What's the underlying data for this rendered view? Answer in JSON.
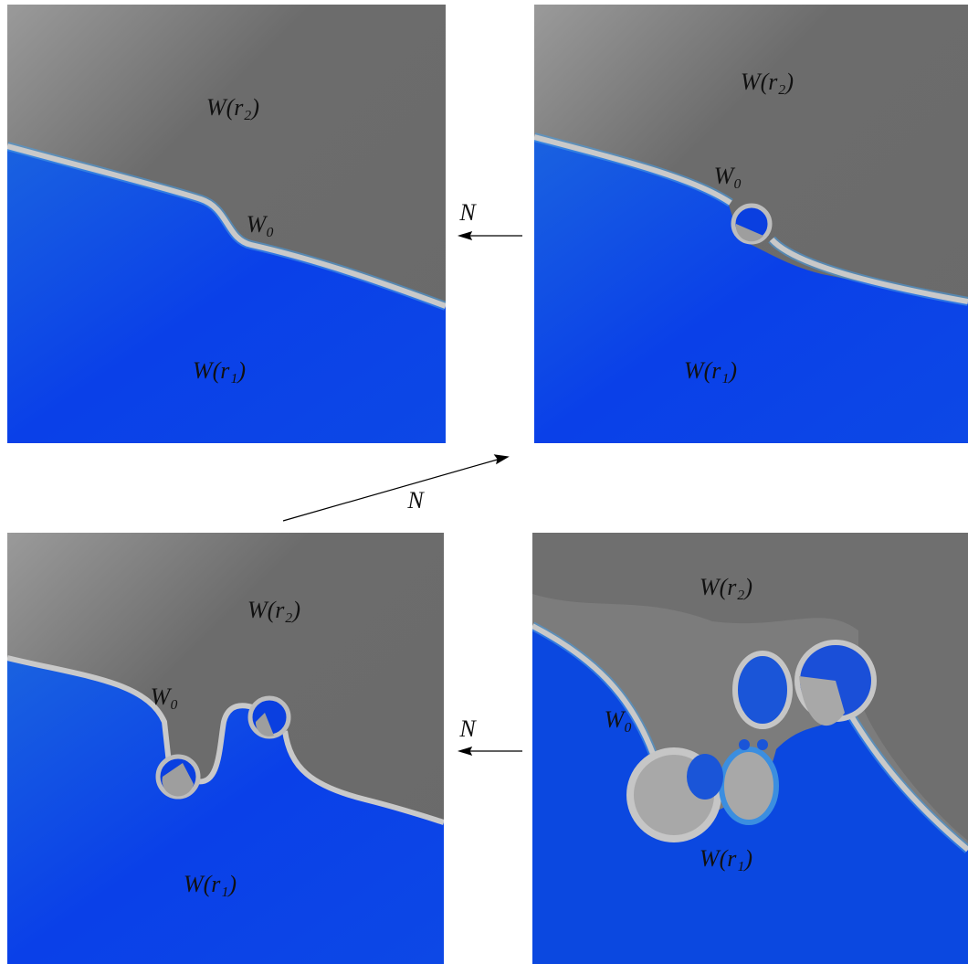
{
  "panels": [
    {
      "labels": [
        "W(r₂)",
        "W₀",
        "W(r₁)"
      ]
    },
    {
      "labels": [
        "W(r₂)",
        "W₀",
        "W(r₁)"
      ]
    },
    {
      "labels": [
        "W(r₂)",
        "W₀",
        "W(r₁)"
      ]
    },
    {
      "labels": [
        "W(r₂)",
        "W₀",
        "W(r₁)"
      ]
    }
  ],
  "arrows": [
    {
      "label": "N"
    },
    {
      "label": "N"
    },
    {
      "label": "N"
    }
  ]
}
